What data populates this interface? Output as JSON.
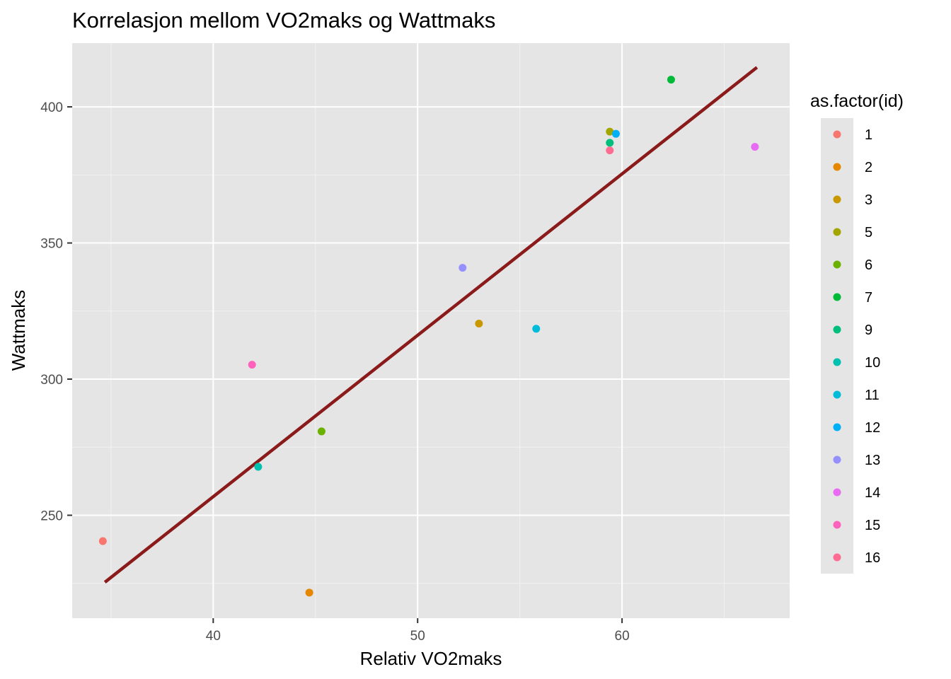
{
  "chart_data": {
    "type": "scatter",
    "title": "Korrelasjon mellom VO2maks og Wattmaks",
    "xlabel": "Relativ VO2maks",
    "ylabel": "Wattmaks",
    "xlim": [
      33.1,
      68.2
    ],
    "ylim": [
      212.2,
      423.4
    ],
    "x_ticks": [
      40,
      50,
      60
    ],
    "y_ticks": [
      250,
      300,
      350,
      400
    ],
    "x_minor": [
      35,
      45,
      55,
      65
    ],
    "y_minor": [
      225,
      275,
      325,
      375
    ],
    "grid": true,
    "background": "#e5e5e5",
    "legend": {
      "title": "as.factor(id)",
      "position": "right"
    },
    "points": [
      {
        "id": "1",
        "x": 34.6,
        "y": 240.5,
        "color": "#F8766D"
      },
      {
        "id": "2",
        "x": 44.7,
        "y": 221.6,
        "color": "#E58700"
      },
      {
        "id": "3",
        "x": 53.0,
        "y": 320.4,
        "color": "#C99800"
      },
      {
        "id": "5",
        "x": 59.4,
        "y": 390.9,
        "color": "#A3A500"
      },
      {
        "id": "6",
        "x": 45.3,
        "y": 280.8,
        "color": "#6BB100"
      },
      {
        "id": "7",
        "x": 62.4,
        "y": 410.0,
        "color": "#00BA38"
      },
      {
        "id": "9",
        "x": 59.4,
        "y": 386.8,
        "color": "#00BF7D"
      },
      {
        "id": "10",
        "x": 42.2,
        "y": 267.8,
        "color": "#00C0AF"
      },
      {
        "id": "11",
        "x": 55.8,
        "y": 318.5,
        "color": "#00BCD8"
      },
      {
        "id": "12",
        "x": 59.7,
        "y": 390.1,
        "color": "#00B0F6"
      },
      {
        "id": "13",
        "x": 52.2,
        "y": 340.9,
        "color": "#9590FF"
      },
      {
        "id": "14",
        "x": 66.5,
        "y": 385.3,
        "color": "#E76BF3"
      },
      {
        "id": "15",
        "x": 41.9,
        "y": 305.3,
        "color": "#FF62BC"
      },
      {
        "id": "16",
        "x": 59.4,
        "y": 384.0,
        "color": "#FF6C91"
      }
    ],
    "fit_line": {
      "x": [
        34.7,
        66.6
      ],
      "y": [
        225.4,
        414.5
      ],
      "color": "#8B1A1A"
    }
  }
}
